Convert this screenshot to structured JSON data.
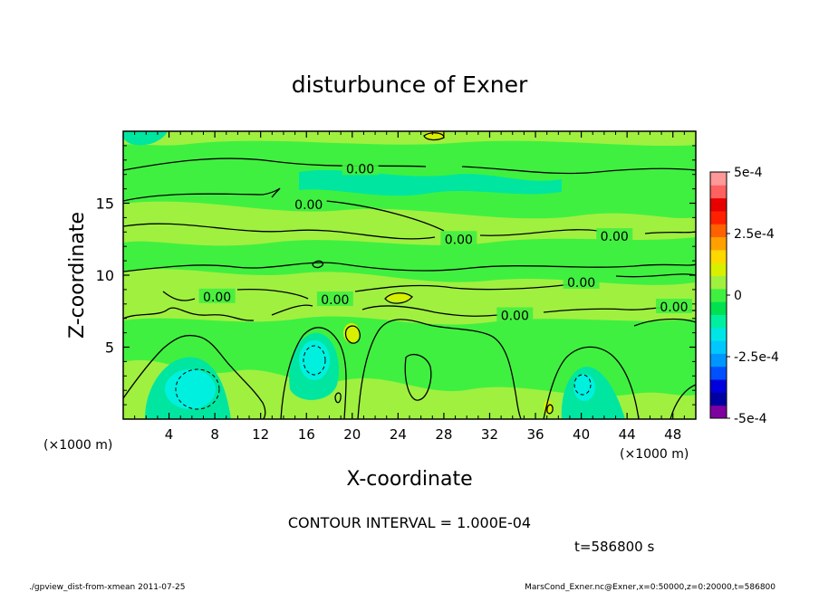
{
  "chart_data": {
    "type": "heatmap",
    "title": "disturbunce of Exner",
    "xlabel": "X-coordinate",
    "ylabel": "Z-coordinate",
    "x_unit_left": "(×1000 m)",
    "x_unit_right": "(×1000 m)",
    "xlim": [
      0,
      50
    ],
    "ylim": [
      0,
      20
    ],
    "x_ticks": [
      4,
      8,
      12,
      16,
      20,
      24,
      28,
      32,
      36,
      40,
      44,
      48
    ],
    "y_ticks": [
      5,
      10,
      15
    ],
    "colorbar": {
      "range": [
        -0.0005,
        0.0005
      ],
      "tick_labels": [
        "5e-4",
        "2.5e-4",
        "0",
        "-2.5e-4",
        "-5e-4"
      ],
      "tick_values": [
        0.0005,
        0.00025,
        0,
        -0.00025,
        -0.0005
      ],
      "colors": [
        "#7f00a0",
        "#0000a0",
        "#0000dc",
        "#0050ff",
        "#0096ff",
        "#00c8ff",
        "#00e6e6",
        "#00f0a0",
        "#00e050",
        "#40f040",
        "#a0f040",
        "#d8f000",
        "#ffd800",
        "#ffa000",
        "#ff6000",
        "#ff2000",
        "#e80000",
        "#ff6060",
        "#ff9898"
      ]
    },
    "contour_labels": [
      {
        "text": "0.00",
        "x": 20.7,
        "z": 17.4
      },
      {
        "text": "0.00",
        "x": 16.2,
        "z": 14.9
      },
      {
        "text": "0.00",
        "x": 29.3,
        "z": 12.5
      },
      {
        "text": "0.00",
        "x": 42.9,
        "z": 12.7
      },
      {
        "text": "0.00",
        "x": 8.2,
        "z": 8.5
      },
      {
        "text": "0.00",
        "x": 18.5,
        "z": 8.3
      },
      {
        "text": "0.00",
        "x": 40.0,
        "z": 9.5
      },
      {
        "text": "0.00",
        "x": 34.2,
        "z": 7.2
      },
      {
        "text": "0.00",
        "x": 48.1,
        "z": 7.8
      }
    ],
    "contour_interval_text": "CONTOUR INTERVAL = 1.000E-04",
    "time_text": "t=586800 s"
  },
  "footer": {
    "left": "./gpview_dist-from-xmean  2011-07-25",
    "right": "MarsCond_Exner.nc@Exner,x=0:50000,z=0:20000,t=586800"
  },
  "colors": {
    "background_green": "#40f040",
    "light_green": "#a0f040",
    "cyan_green": "#00e6a0",
    "cyan": "#00f0e0",
    "yellow_green": "#d8f000"
  }
}
